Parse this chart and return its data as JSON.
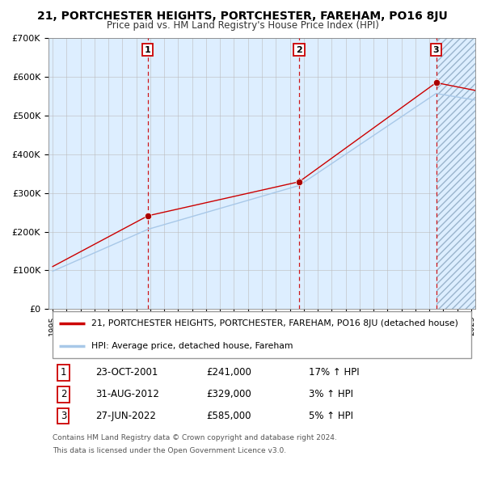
{
  "title": "21, PORTCHESTER HEIGHTS, PORTCHESTER, FAREHAM, PO16 8JU",
  "subtitle": "Price paid vs. HM Land Registry's House Price Index (HPI)",
  "legend_line1": "21, PORTCHESTER HEIGHTS, PORTCHESTER, FAREHAM, PO16 8JU (detached house)",
  "legend_line2": "HPI: Average price, detached house, Fareham",
  "footer1": "Contains HM Land Registry data © Crown copyright and database right 2024.",
  "footer2": "This data is licensed under the Open Government Licence v3.0.",
  "sale_points": [
    {
      "label": "1",
      "date": "23-OCT-2001",
      "price": 241000,
      "pct": "17%",
      "x_year": 2001.81
    },
    {
      "label": "2",
      "date": "31-AUG-2012",
      "price": 329000,
      "pct": "3%",
      "x_year": 2012.67
    },
    {
      "label": "3",
      "date": "27-JUN-2022",
      "price": 585000,
      "pct": "5%",
      "x_year": 2022.49
    }
  ],
  "sale_prices": [
    241000,
    329000,
    585000
  ],
  "hpi_color": "#a8c8e8",
  "price_color": "#cc0000",
  "sale_dot_color": "#aa0000",
  "vline_color": "#cc0000",
  "bg_color": "#ddeeff",
  "grid_color": "#bbbbbb",
  "ylim": [
    0,
    700000
  ],
  "xlim_start": 1994.7,
  "xlim_end": 2025.3
}
